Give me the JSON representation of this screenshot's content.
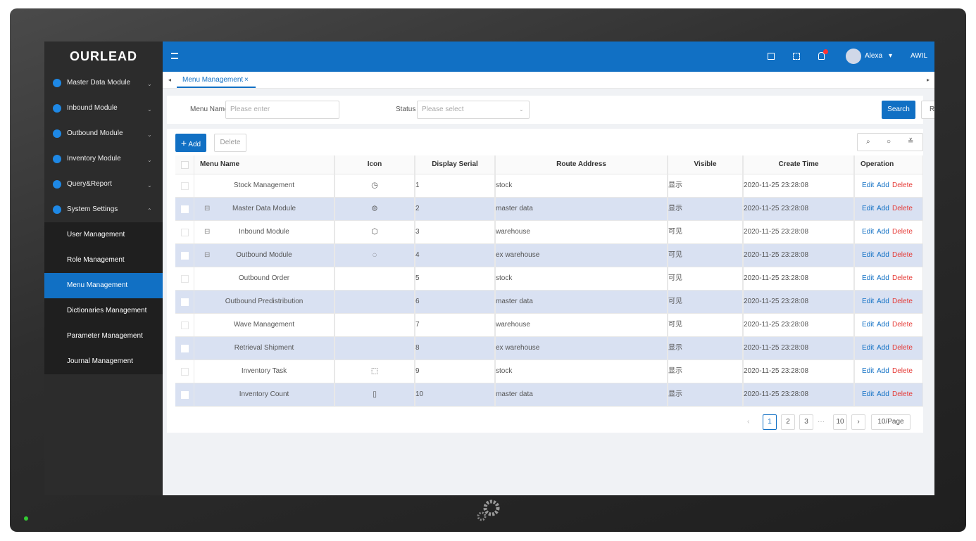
{
  "brand": "OURLEAD",
  "sidebar": {
    "modules": [
      "Master Data Module",
      "Inbound Module",
      "Outbound Module",
      "Inventory Module",
      "Query&Report",
      "System Settings"
    ],
    "submenu": [
      "User Management",
      "Role Management",
      "Menu Management",
      "Dictionaries Management",
      "Parameter Management",
      "Journal Management"
    ]
  },
  "header": {
    "user": "Alexa",
    "extra": "AWIL"
  },
  "tabs": [
    "Menu Management"
  ],
  "filters": {
    "menu_name_label": "Menu Name",
    "menu_name_placeholder": "Please enter",
    "status_label": "Status",
    "status_placeholder": "Please select",
    "search": "Search",
    "reset": "Reset"
  },
  "toolbar": {
    "add": "Add",
    "delete": "Delete"
  },
  "table": {
    "columns": [
      "Menu Name",
      "Icon",
      "Display Serial",
      "Route Address",
      "Visible",
      "Create Time",
      "Operation"
    ],
    "operations": [
      "Edit",
      "Add",
      "Delete"
    ],
    "rows": [
      [
        "Stock Management",
        1,
        "stock",
        "显示",
        "2020-11-25 23:28:08"
      ],
      [
        "Master Data Module",
        2,
        "master data",
        "显示",
        "2020-11-25 23:28:08"
      ],
      [
        "Inbound Module",
        3,
        "warehouse",
        "可见",
        "2020-11-25 23:28:08"
      ],
      [
        "Outbound Module",
        4,
        "ex warehouse",
        "可见",
        "2020-11-25 23:28:08"
      ],
      [
        "Outbound Order",
        5,
        "stock",
        "可见",
        "2020-11-25 23:28:08"
      ],
      [
        "Outbound Predistribution",
        6,
        "master data",
        "可见",
        "2020-11-25 23:28:08"
      ],
      [
        "Wave Management",
        7,
        "warehouse",
        "可见",
        "2020-11-25 23:28:08"
      ],
      [
        "Retrieval Shipment",
        8,
        "ex warehouse",
        "显示",
        "2020-11-25 23:28:08"
      ],
      [
        "Inventory Task",
        9,
        "stock",
        "显示",
        "2020-11-25 23:28:08"
      ],
      [
        "Inventory Count",
        10,
        "master data",
        "显示",
        "2020-11-25 23:28:08"
      ]
    ]
  },
  "pagination": {
    "pages": [
      "1",
      "2",
      "3",
      "10"
    ],
    "ellipsis": "···",
    "page_size": "10/Page"
  }
}
